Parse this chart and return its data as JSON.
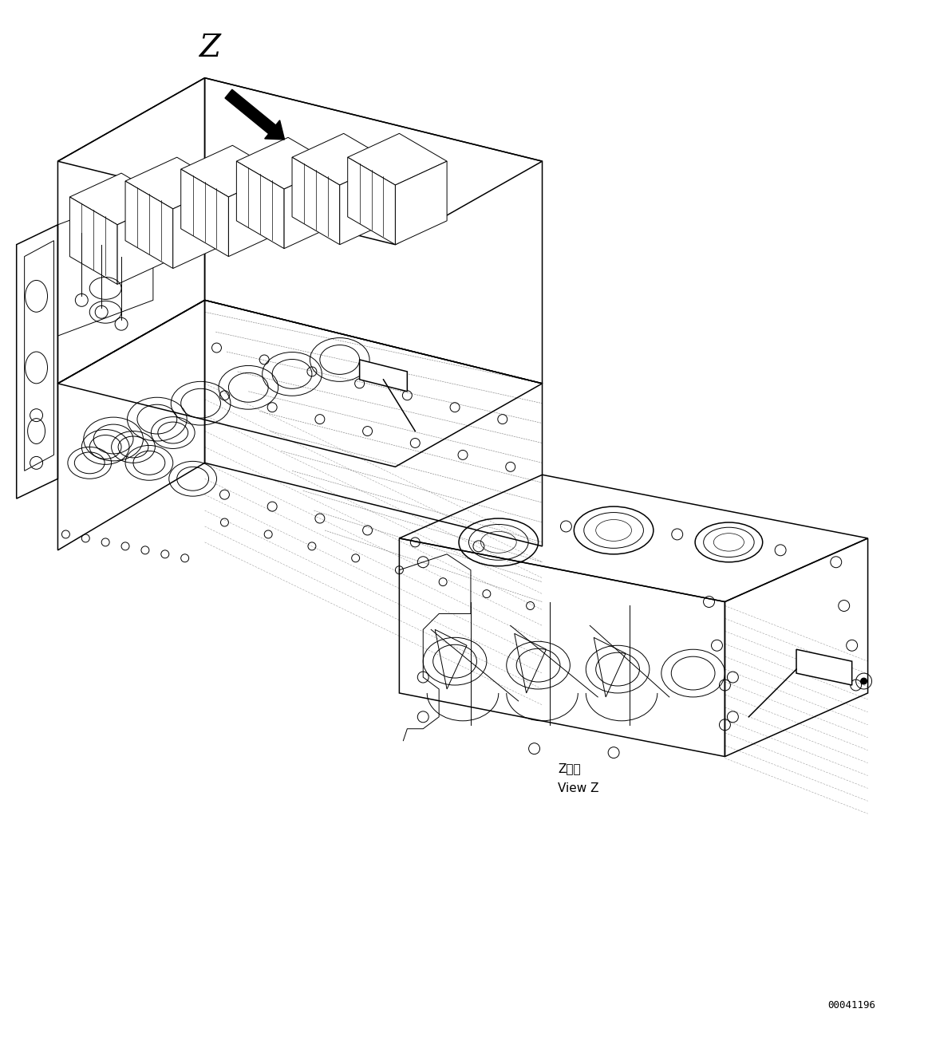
{
  "background_color": "#ffffff",
  "line_color": "#000000",
  "fig_width": 11.63,
  "fig_height": 13.09,
  "dpi": 100,
  "part_number": "00041196",
  "z_label": "Z",
  "view_label_jp": "Z　視",
  "view_label_en": "View Z"
}
